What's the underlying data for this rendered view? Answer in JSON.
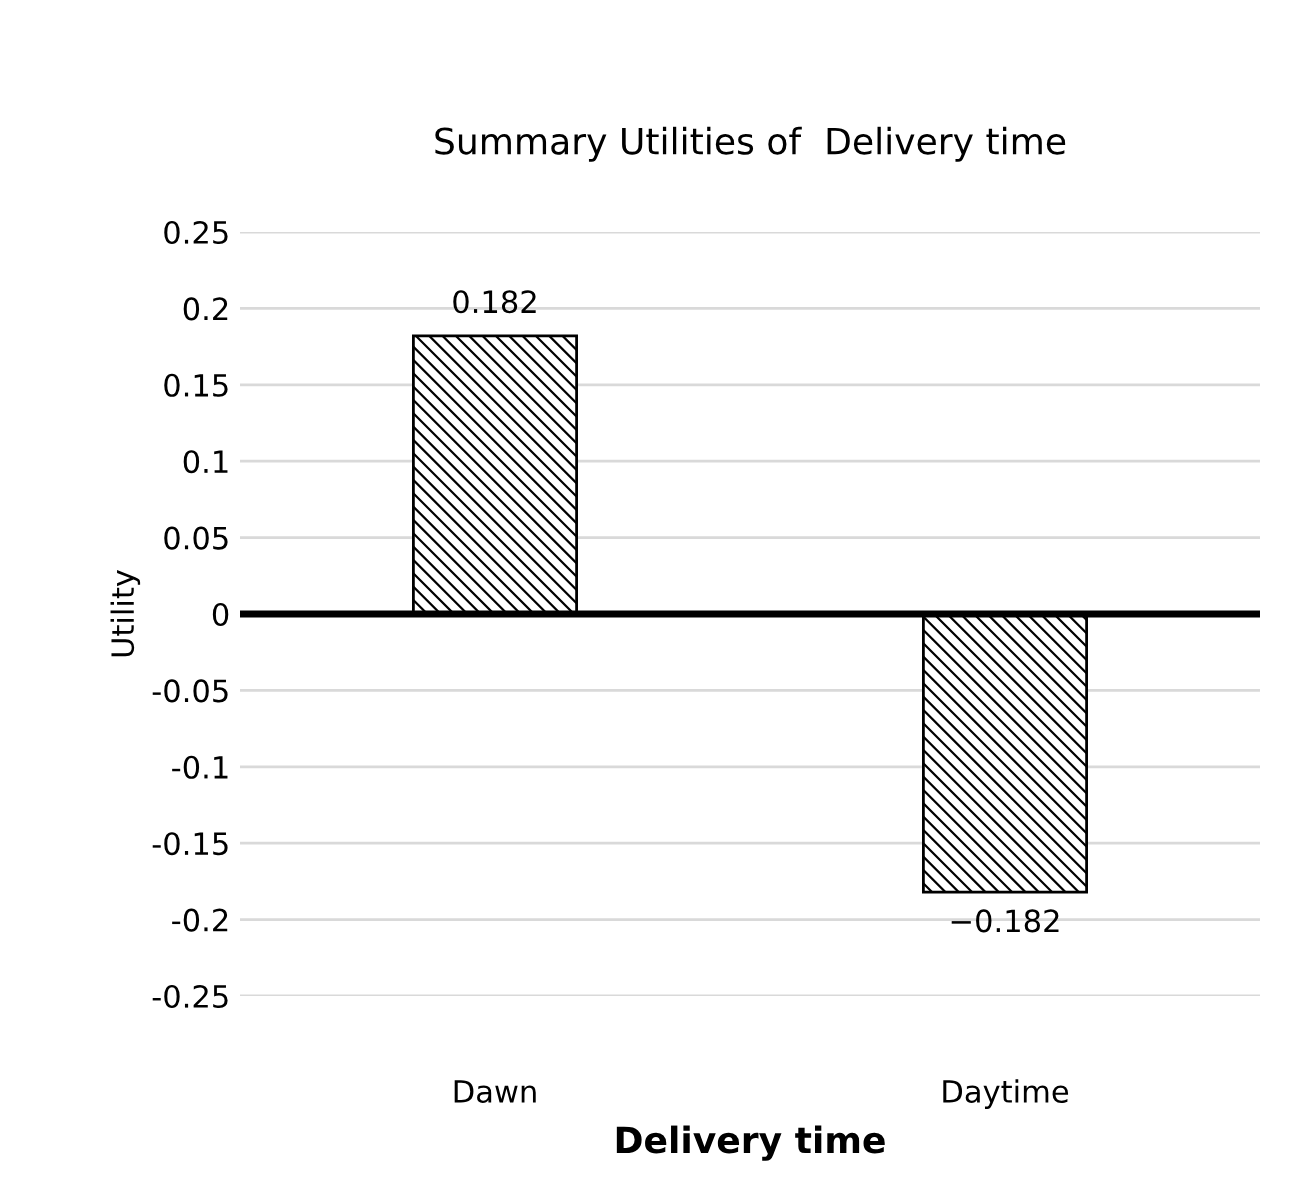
{
  "chart_data": {
    "type": "bar",
    "title": "Summary Utilities of  Delivery time",
    "xlabel": "Delivery time",
    "ylabel": "Utility",
    "categories": [
      "Dawn",
      "Daytime"
    ],
    "series": [
      {
        "color": "#000000",
        "values": [
          0.182,
          -0.182
        ]
      }
    ],
    "value_labels": [
      "0.182",
      "−0.182"
    ],
    "ylim": [
      -0.25,
      0.25
    ],
    "yticks": [
      0.25,
      0.2,
      0.15,
      0.1,
      0.05,
      0,
      -0.05,
      -0.1,
      -0.15,
      -0.2,
      -0.25
    ],
    "ref_lines": [
      {
        "axis": "y",
        "value": 0,
        "color": "#000000"
      }
    ],
    "grid": "y",
    "legend": false
  }
}
